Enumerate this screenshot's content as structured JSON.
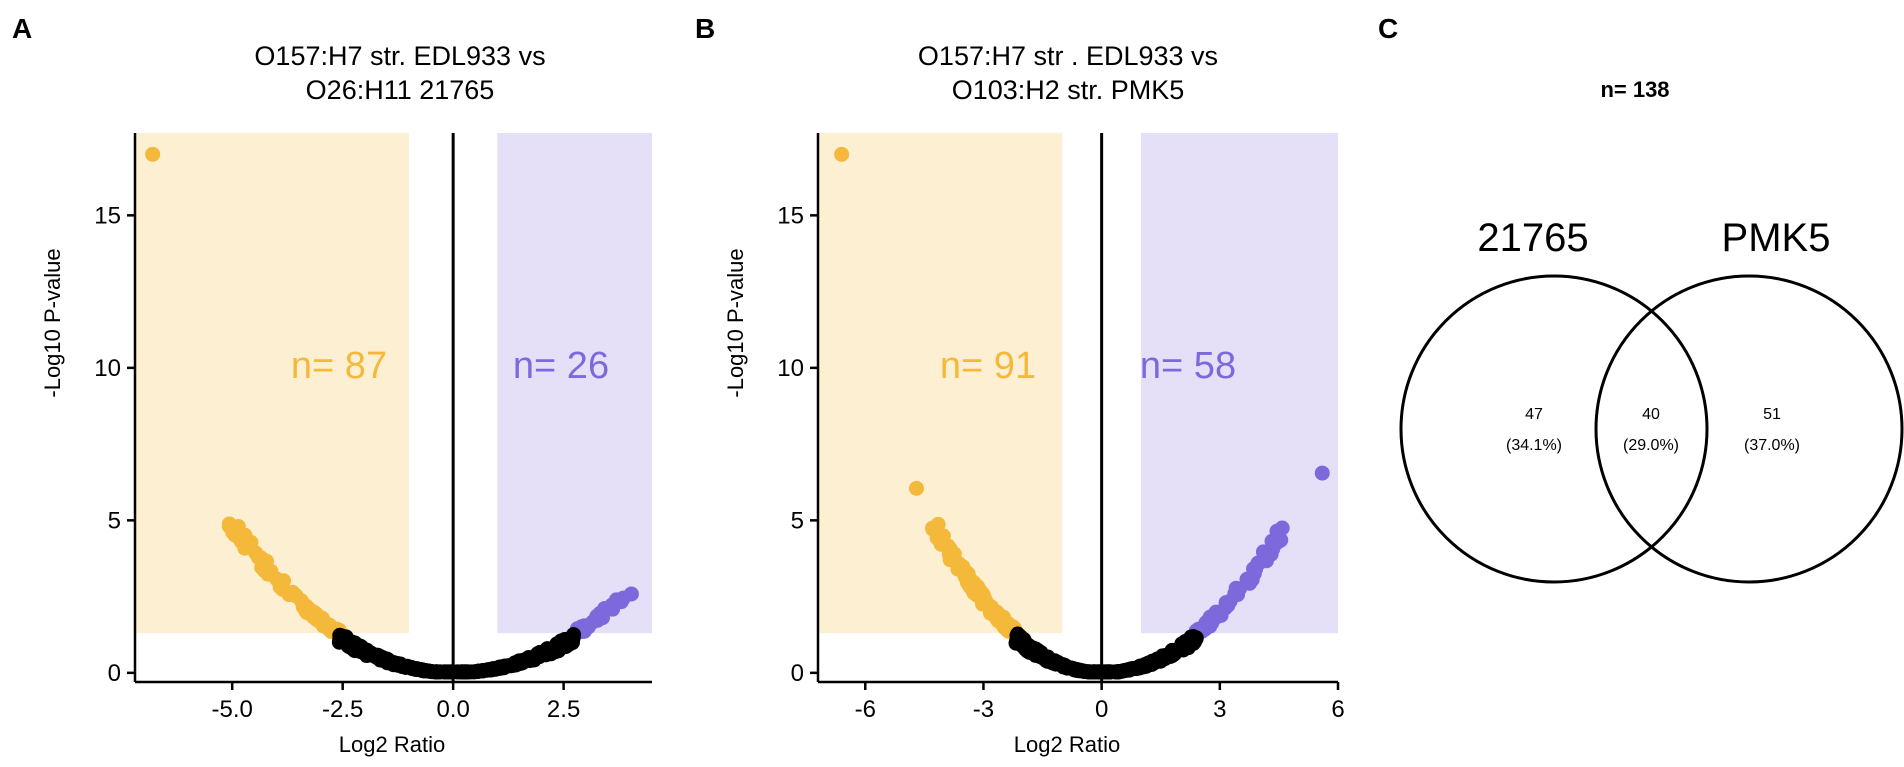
{
  "chart_data": [
    {
      "panel": "A",
      "type": "scatter",
      "title_lines": [
        "O157:H7 str. EDL933 vs",
        "O26:H11 21765"
      ],
      "xlabel": "Log2 Ratio",
      "ylabel": "-Log10 P-value",
      "xlim": [
        -7.2,
        4.5
      ],
      "ylim": [
        -0.3,
        17.7
      ],
      "xticks": [
        -5.0,
        -2.5,
        0.0,
        2.5
      ],
      "xtick_labels": [
        "-5.0",
        "-2.5",
        "0.0",
        "2.5"
      ],
      "yticks": [
        0,
        5,
        10,
        15
      ],
      "ytick_labels": [
        "0",
        "5",
        "10",
        "15"
      ],
      "vline_x": 0,
      "fold_threshold": 1.0,
      "pvalue_threshold": 1.3,
      "outlier_points": [
        {
          "x": -6.8,
          "y": 17.0,
          "group": "left"
        }
      ],
      "left_count_label": "n= 87",
      "right_count_label": "n= 26",
      "left_color": "#f4b93a",
      "right_color": "#7d69dc",
      "left_shade": "#fdf0d2",
      "right_shade": "#e5e0f8",
      "neutral_color": "#000000",
      "curve": {
        "left_max_x": -5.0,
        "left_max_y": 4.85,
        "right_max_x": 3.9,
        "right_max_y": 2.55,
        "left_n": 87,
        "right_n": 26
      }
    },
    {
      "panel": "B",
      "type": "scatter",
      "title_lines": [
        "O157:H7 str . EDL933 vs",
        "O103:H2 str. PMK5"
      ],
      "xlabel": "Log2 Ratio",
      "ylabel": "-Log10 P-value",
      "xlim": [
        -7.2,
        6.0
      ],
      "ylim": [
        -0.3,
        17.7
      ],
      "xticks": [
        -6,
        -3,
        0,
        3,
        6
      ],
      "xtick_labels": [
        "-6",
        "-3",
        "0",
        "3",
        "6"
      ],
      "yticks": [
        0,
        5,
        10,
        15
      ],
      "ytick_labels": [
        "0",
        "5",
        "10",
        "15"
      ],
      "vline_x": 0,
      "fold_threshold": 1.0,
      "pvalue_threshold": 1.3,
      "outlier_points": [
        {
          "x": -6.6,
          "y": 17.0,
          "group": "left"
        },
        {
          "x": -4.7,
          "y": 6.05,
          "group": "left"
        },
        {
          "x": 5.6,
          "y": 6.55,
          "group": "right"
        }
      ],
      "left_count_label": "n= 91",
      "right_count_label": "n= 58",
      "left_color": "#f4b93a",
      "right_color": "#7d69dc",
      "left_shade": "#fdf0d2",
      "right_shade": "#e5e0f8",
      "neutral_color": "#000000",
      "curve": {
        "left_max_x": -4.3,
        "left_max_y": 4.95,
        "right_max_x": 4.6,
        "right_max_y": 4.7,
        "left_n": 91,
        "right_n": 58
      }
    },
    {
      "panel": "C",
      "type": "venn",
      "total_label": "n= 138",
      "sets": [
        {
          "name": "21765",
          "only_count": "47",
          "only_percent": "(34.1%)"
        },
        {
          "name": "PMK5",
          "only_count": "51",
          "only_percent": "(37.0%)"
        }
      ],
      "overlap_count": "40",
      "overlap_percent": "(29.0%)"
    }
  ]
}
